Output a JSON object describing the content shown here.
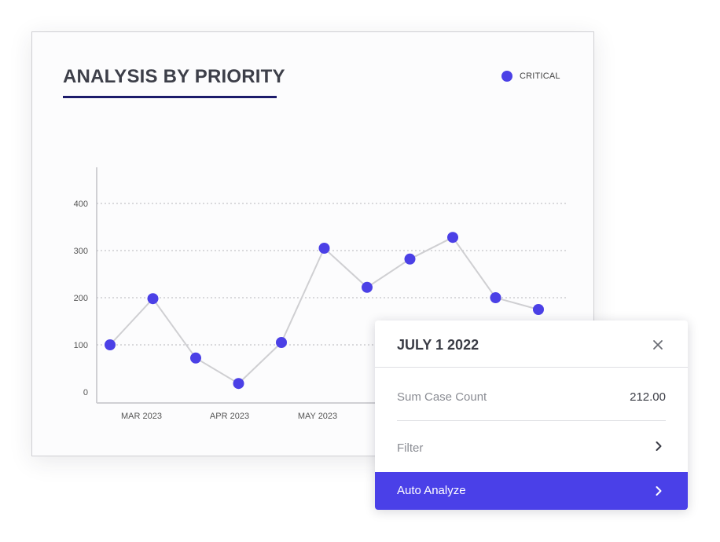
{
  "card": {
    "title": "ANALYSIS BY PRIORITY",
    "legend_label": "CRITICAL"
  },
  "colors": {
    "series": "#4b40e6",
    "line": "#cfcfd2",
    "underline": "#1c1b6b",
    "button": "#4a40e8"
  },
  "chart_data": {
    "type": "line",
    "title": "ANALYSIS BY PRIORITY",
    "legend_position": "top-right",
    "grid": true,
    "ylim": [
      0,
      400
    ],
    "y_ticks": [
      "0",
      "100",
      "200",
      "300",
      "400"
    ],
    "x_tick_labels": [
      "MAR 2023",
      "APR 2023",
      "MAY 2023"
    ],
    "series": [
      {
        "name": "CRITICAL",
        "values": [
          100,
          198,
          72,
          18,
          105,
          305,
          222,
          282,
          328,
          200,
          175
        ]
      }
    ]
  },
  "panel": {
    "title": "JULY 1 2022",
    "close_icon": "close-icon",
    "metric_label": "Sum Case Count",
    "metric_value": "212.00",
    "filter_label": "Filter",
    "filter_icon": "chevron-right-icon",
    "auto_label": "Auto Analyze",
    "auto_icon": "chevron-right-icon"
  }
}
